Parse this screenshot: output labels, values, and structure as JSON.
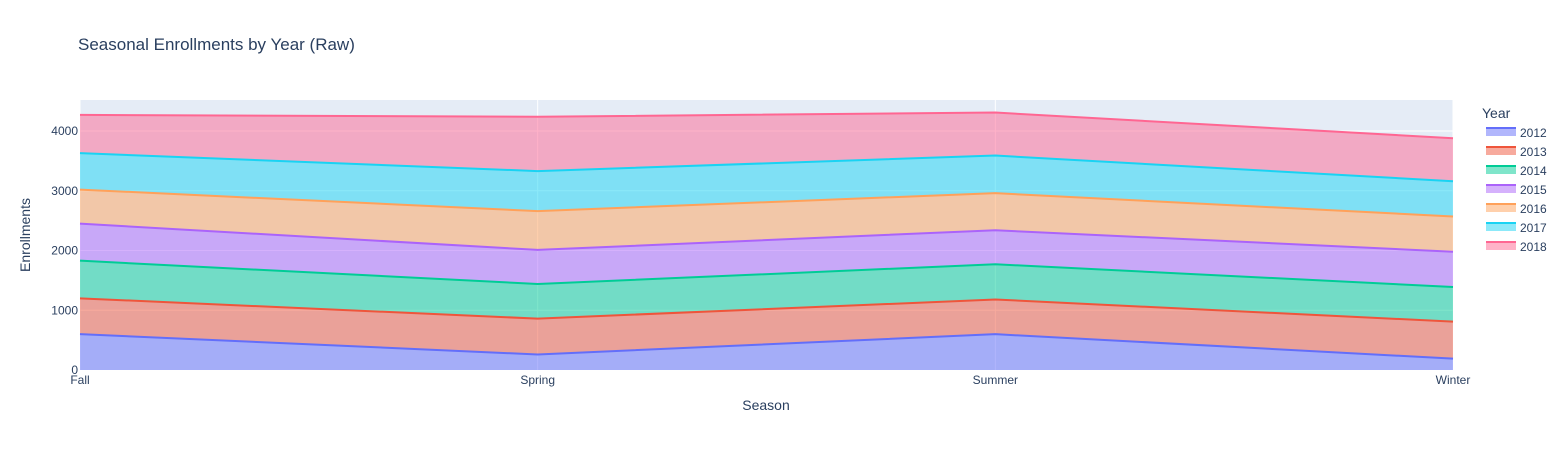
{
  "chart_data": {
    "type": "area",
    "stacked": true,
    "title": "Seasonal Enrollments by Year (Raw)",
    "xlabel": "Season",
    "ylabel": "Enrollments",
    "categories": [
      "Fall",
      "Spring",
      "Summer",
      "Winter"
    ],
    "ylim": [
      0,
      4520
    ],
    "yticks": [
      0,
      1000,
      2000,
      3000,
      4000
    ],
    "grid": true,
    "legend_title": "Year",
    "legend_position": "right",
    "series": [
      {
        "name": "2012",
        "values": [
          600,
          260,
          600,
          190
        ],
        "color": "#636efa"
      },
      {
        "name": "2013",
        "values": [
          600,
          600,
          580,
          620
        ],
        "color": "#EF553B"
      },
      {
        "name": "2014",
        "values": [
          630,
          580,
          590,
          580
        ],
        "color": "#00cc96"
      },
      {
        "name": "2015",
        "values": [
          620,
          570,
          570,
          590
        ],
        "color": "#ab63fa"
      },
      {
        "name": "2016",
        "values": [
          570,
          650,
          620,
          590
        ],
        "color": "#FFA15A"
      },
      {
        "name": "2017",
        "values": [
          610,
          670,
          630,
          590
        ],
        "color": "#19d3f3"
      },
      {
        "name": "2018",
        "values": [
          640,
          910,
          720,
          720
        ],
        "color": "#FF6692"
      }
    ]
  }
}
